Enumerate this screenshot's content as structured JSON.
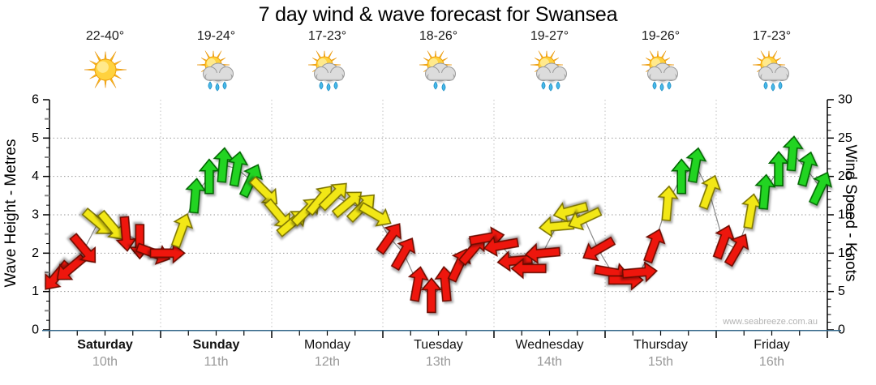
{
  "title": "7 day wind & wave forecast for Swansea",
  "watermark": "www.seabreeze.com.au",
  "chart_data": {
    "type": "wind-arrow-timeseries",
    "title": "7 day wind & wave forecast for Swansea",
    "left_axis": {
      "label": "Wave Height - Metres",
      "min": 0,
      "max": 6,
      "major_step": 1,
      "minor_step": 0.25,
      "unit": "m"
    },
    "right_axis": {
      "label": "Wind Speed - Knots",
      "min": 0,
      "max": 30,
      "major_step": 5,
      "minor_step": 1,
      "unit": "knots"
    },
    "slots_per_day": 8,
    "grid": {
      "horizontal_dotted_at_metres": [
        1,
        2,
        3,
        4,
        5
      ],
      "vertical_dotted_at_day_boundaries": true
    },
    "days": [
      {
        "name": "Saturday",
        "date": "10th",
        "temps": "22-40°",
        "icon": "sunny",
        "rain_drops": 0,
        "weekend": true,
        "wind_knots": [
          7,
          8,
          10.5,
          14,
          13.5,
          12.5,
          11.5,
          10
        ],
        "dir_deg": [
          220,
          230,
          140,
          130,
          140,
          175,
          180,
          110
        ],
        "colors": [
          "red",
          "red",
          "red",
          "yellow",
          "yellow",
          "red",
          "red",
          "red"
        ]
      },
      {
        "name": "Sunday",
        "date": "11th",
        "temps": "19-24°",
        "icon": "sun-cloud-rain",
        "rain_drops": 3,
        "weekend": true,
        "wind_knots": [
          10,
          13,
          17.5,
          20,
          21.5,
          21,
          19.5,
          18
        ],
        "dir_deg": [
          90,
          20,
          5,
          0,
          5,
          10,
          25,
          135
        ],
        "colors": [
          "red",
          "yellow",
          "green",
          "green",
          "green",
          "green",
          "green",
          "yellow"
        ]
      },
      {
        "name": "Monday",
        "date": "12th",
        "temps": "17-23°",
        "icon": "sun-cloud-rain",
        "rain_drops": 3,
        "weekend": false,
        "wind_knots": [
          15,
          14,
          15.5,
          17,
          17.5,
          16.5,
          16,
          15
        ],
        "dir_deg": [
          140,
          50,
          45,
          40,
          45,
          50,
          45,
          120
        ],
        "colors": [
          "yellow",
          "yellow",
          "yellow",
          "yellow",
          "yellow",
          "yellow",
          "yellow",
          "yellow"
        ]
      },
      {
        "name": "Tuesday",
        "date": "13th",
        "temps": "18-26°",
        "icon": "sun-cloud-rain",
        "rain_drops": 2,
        "weekend": false,
        "wind_knots": [
          12,
          10,
          6,
          4.5,
          6,
          8.5,
          10.5,
          12
        ],
        "dir_deg": [
          35,
          30,
          10,
          0,
          355,
          25,
          40,
          80
        ],
        "colors": [
          "red",
          "red",
          "red",
          "red",
          "red",
          "red",
          "red",
          "red"
        ]
      },
      {
        "name": "Wednesday",
        "date": "14th",
        "temps": "19-27°",
        "icon": "sun-cloud-rain",
        "rain_drops": 3,
        "weekend": false,
        "wind_knots": [
          11,
          9,
          8,
          10,
          13.5,
          15.5,
          14.5,
          10.5
        ],
        "dir_deg": [
          260,
          265,
          270,
          265,
          265,
          255,
          245,
          240
        ],
        "colors": [
          "red",
          "red",
          "red",
          "red",
          "yellow",
          "yellow",
          "yellow",
          "red"
        ]
      },
      {
        "name": "Thursday",
        "date": "15th",
        "temps": "19-26°",
        "icon": "sun-cloud-rain",
        "rain_drops": 3,
        "weekend": false,
        "wind_knots": [
          7.5,
          6.5,
          7.5,
          11,
          16.5,
          20,
          21.5,
          18
        ],
        "dir_deg": [
          100,
          90,
          85,
          20,
          5,
          0,
          10,
          20
        ],
        "colors": [
          "red",
          "red",
          "red",
          "red",
          "yellow",
          "green",
          "green",
          "yellow"
        ]
      },
      {
        "name": "Friday",
        "date": "16th",
        "temps": "17-23°",
        "icon": "sun-cloud-rain",
        "rain_drops": 3,
        "weekend": false,
        "wind_knots": [
          11.5,
          10.5,
          15.5,
          18,
          21,
          23,
          21,
          18.5
        ],
        "dir_deg": [
          20,
          30,
          10,
          5,
          0,
          5,
          15,
          25
        ],
        "colors": [
          "red",
          "red",
          "yellow",
          "green",
          "green",
          "green",
          "green",
          "green"
        ]
      }
    ]
  },
  "colors": {
    "arrow_red": "#ee1409",
    "arrow_red_stroke": "#6b0800",
    "arrow_yellow": "#f2e713",
    "arrow_yellow_stroke": "#7a7200",
    "arrow_green": "#24d424",
    "arrow_green_stroke": "#006600",
    "x_axis_line": "#336688",
    "grid_dots": "#999999",
    "day_divider": "#c0c0c0",
    "connector_line": "#8a8a8a",
    "date_text": "#999999",
    "watermark_text": "#b3b3b3"
  }
}
